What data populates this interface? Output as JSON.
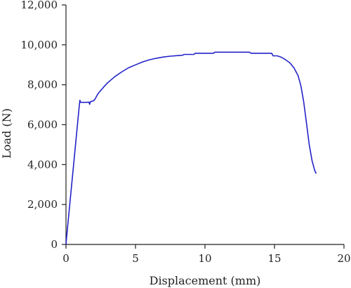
{
  "chart_data": {
    "type": "line",
    "title": "",
    "xlabel": "Displacement (mm)",
    "ylabel": "Load (N)",
    "xlim": [
      0,
      20
    ],
    "ylim": [
      0,
      12000
    ],
    "xticks": [
      0,
      5,
      10,
      15,
      20
    ],
    "yticks": [
      0,
      2000,
      4000,
      6000,
      8000,
      10000,
      12000
    ],
    "xtick_labels": [
      "0",
      "5",
      "10",
      "15",
      "20"
    ],
    "ytick_labels": [
      "0",
      "2,000",
      "4,000",
      "6,000",
      "8,000",
      "10,000",
      "12,000"
    ],
    "grid": false,
    "legend": "none",
    "series_color": "#2323c8",
    "series": [
      {
        "x": [
          0.0,
          0.05,
          0.95,
          1.0,
          1.05,
          1.5,
          1.65,
          1.7,
          1.75,
          2.0,
          2.1,
          2.3,
          2.7,
          3.0,
          3.5,
          4.0,
          4.5,
          5.0,
          5.5,
          6.0,
          6.5,
          7.0,
          7.5,
          8.0,
          8.4,
          8.5,
          9.0,
          9.2,
          9.3,
          10.0,
          10.6,
          10.7,
          11.5,
          12.5,
          13.2,
          13.3,
          14.2,
          14.8,
          14.9,
          15.2,
          15.5,
          15.8,
          16.1,
          16.4,
          16.7,
          16.9,
          17.1,
          17.3,
          17.5,
          17.7,
          17.9,
          18.0
        ],
        "y": [
          0,
          400,
          6900,
          7220,
          7120,
          7120,
          7130,
          7020,
          7150,
          7200,
          7300,
          7550,
          7880,
          8100,
          8400,
          8640,
          8850,
          9000,
          9140,
          9250,
          9330,
          9390,
          9430,
          9460,
          9480,
          9520,
          9520,
          9520,
          9580,
          9580,
          9580,
          9630,
          9630,
          9630,
          9630,
          9580,
          9580,
          9580,
          9450,
          9450,
          9380,
          9250,
          9100,
          8850,
          8450,
          7950,
          7150,
          6100,
          5000,
          4200,
          3700,
          3550
        ]
      }
    ]
  }
}
